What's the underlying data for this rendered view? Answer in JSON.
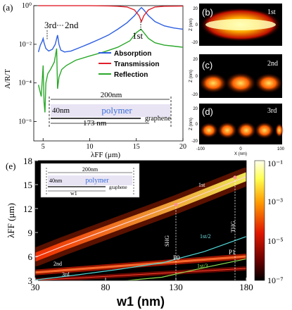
{
  "chart_data": [
    {
      "panel": "(a)",
      "type": "line",
      "xlabel": "λFF (μm)",
      "ylabel": "A/R/T",
      "xlim": [
        4,
        20
      ],
      "ylim": [
        1e-07,
        1
      ],
      "yscale": "log",
      "x_ticks": [
        "5",
        "10",
        "15",
        "20"
      ],
      "y_ticks": [
        "10⁰",
        "10⁻²",
        "10⁻⁴",
        "10⁻⁶"
      ],
      "legend": {
        "position": "right",
        "entries": [
          "Absorption",
          "Transmission",
          "Reflection"
        ]
      },
      "series": [
        {
          "name": "Absorption",
          "color": "#2d5fe0",
          "x": [
            4.5,
            4.7,
            4.9,
            5.0,
            5.1,
            5.3,
            5.6,
            6.0,
            6.3,
            6.55,
            6.7,
            6.9,
            7.3,
            8,
            9,
            10,
            11,
            12,
            13,
            14,
            14.8,
            15.3,
            15.55,
            15.8,
            16.3,
            17,
            18,
            19,
            20
          ],
          "y": [
            0.004,
            0.009,
            0.014,
            0.02,
            0.012,
            0.006,
            0.0045,
            0.0055,
            0.01,
            0.03,
            0.01,
            0.005,
            0.004,
            0.0045,
            0.007,
            0.011,
            0.018,
            0.03,
            0.06,
            0.13,
            0.3,
            0.6,
            0.8,
            0.6,
            0.3,
            0.15,
            0.09,
            0.07,
            0.06
          ]
        },
        {
          "name": "Transmission",
          "color": "#e0202a",
          "x": [
            4.5,
            6,
            8,
            10,
            12,
            13,
            14,
            14.8,
            15.3,
            15.55,
            15.8,
            16.3,
            17,
            18,
            20
          ],
          "y": [
            0.99,
            0.99,
            0.99,
            0.99,
            0.97,
            0.93,
            0.85,
            0.6,
            0.3,
            0.15,
            0.3,
            0.6,
            0.85,
            0.93,
            0.95
          ]
        },
        {
          "name": "Reflection",
          "color": "#2aa82a",
          "x": [
            4.5,
            4.8,
            5.0,
            5.1,
            5.2,
            5.3,
            5.5,
            5.8,
            6.2,
            6.45,
            6.55,
            6.7,
            7.0,
            7.5,
            8.5,
            10,
            11.5,
            13,
            14.3,
            15,
            15.5,
            15.8,
            16.3,
            17,
            18,
            19,
            20
          ],
          "y": [
            8e-05,
            2e-05,
            0.0008,
            1e-05,
            3e-06,
            0.0001,
            0.0003,
            0.0005,
            0.0012,
            0.006,
            5e-05,
            0.0002,
            0.0005,
            0.0008,
            0.0015,
            0.0025,
            0.004,
            0.007,
            0.015,
            0.04,
            0.06,
            0.04,
            0.02,
            0.012,
            0.009,
            0.008,
            0.007
          ]
        }
      ],
      "annotations": [
        "3rd",
        "2nd",
        "1st"
      ],
      "inset": {
        "top": "200nm",
        "left": "40nm",
        "middle": "polymer",
        "bottom": "173 nm",
        "layer": "graphene"
      }
    },
    {
      "panel": "(e)",
      "type": "heatmap",
      "xlabel": "w1 (nm)",
      "ylabel": "λFF (μm)",
      "xlim": [
        30,
        180
      ],
      "ylim": [
        3,
        18
      ],
      "x_ticks": [
        "30",
        "80",
        "130",
        "180"
      ],
      "y_ticks": [
        "3",
        "6",
        "9",
        "12",
        "15",
        "18"
      ],
      "colorbar_ticks": [
        "10⁻¹",
        "10⁻³",
        "10⁻⁵",
        "10⁻⁷"
      ],
      "series": [
        {
          "name": "1st",
          "x": [
            30,
            50,
            70,
            90,
            110,
            130,
            150,
            170,
            180
          ],
          "y": [
            5.9,
            7.3,
            8.6,
            9.9,
            11.2,
            12.5,
            13.9,
            15.3,
            16.0
          ]
        },
        {
          "name": "2nd",
          "x": [
            30,
            60,
            90,
            120,
            150,
            180
          ],
          "y": [
            4.0,
            4.4,
            4.8,
            5.2,
            5.6,
            6.0
          ]
        },
        {
          "name": "3rd",
          "x": [
            30,
            60,
            90,
            120,
            150,
            180
          ],
          "y": [
            3.0,
            3.3,
            3.6,
            3.9,
            4.2,
            4.5
          ]
        },
        {
          "name": "1st/2",
          "x": [
            30,
            60,
            90,
            120,
            150,
            180
          ],
          "y": [
            3.05,
            3.7,
            4.4,
            5.2,
            6.6,
            8.5
          ]
        },
        {
          "name": "1st/3",
          "x": [
            30,
            60,
            90,
            120,
            150,
            180
          ],
          "y": [
            2.0,
            2.45,
            2.9,
            3.4,
            4.6,
            5.7
          ]
        }
      ],
      "markers": [
        "P0",
        "P1"
      ],
      "vertical_labels": [
        "SHG",
        "THG"
      ],
      "inset": {
        "top": "200nm",
        "left": "40nm",
        "middle": "polymer",
        "bottom": "w1",
        "layer": "graphene"
      }
    },
    {
      "panel": "(b)-(d)",
      "type": "heatmap",
      "xlabel": "X (nm)",
      "ylabel": "Z (nm)",
      "x_ticks": [
        "-100",
        "0",
        "100"
      ],
      "y_ticks": [
        "20",
        "0",
        "-20"
      ],
      "modes": [
        "(b)",
        "(c)",
        "(d)"
      ],
      "mode_labels": [
        "1st",
        "2nd",
        "3rd"
      ]
    }
  ]
}
